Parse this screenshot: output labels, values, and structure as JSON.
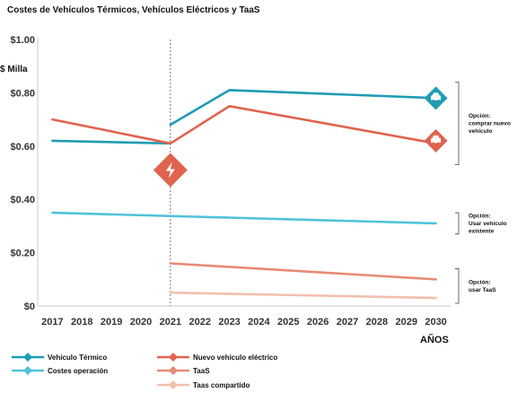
{
  "chart_data": {
    "type": "line",
    "title": "Costes de Vehículos Térmicos, Vehículos Eléctricos y TaaS",
    "ylabel": "$ Milla",
    "xlabel": "AÑOS",
    "x_ticks": [
      2017,
      2018,
      2019,
      2020,
      2021,
      2022,
      2023,
      2024,
      2025,
      2026,
      2027,
      2028,
      2029,
      2030
    ],
    "y_ticks": [
      "$0",
      "$0.20",
      "$0.40",
      "$0.60",
      "$0.80",
      "$1.00"
    ],
    "y_tick_values": [
      0,
      0.2,
      0.4,
      0.6,
      0.8,
      1.0
    ],
    "xlim": [
      2016.5,
      2030.5
    ],
    "ylim": [
      0,
      1.0
    ],
    "grid": false,
    "reference_line_x": 2021,
    "legend_position": "bottom",
    "series": [
      {
        "name": "Vehículo Térmico",
        "color": "#1e9cb3",
        "x": [
          2017,
          2021,
          null,
          2021,
          2023,
          2030
        ],
        "y": [
          0.62,
          0.61,
          null,
          0.68,
          0.81,
          0.78
        ]
      },
      {
        "name": "Costes operación",
        "color": "#4fc3d9",
        "x": [
          2017,
          2030
        ],
        "y": [
          0.35,
          0.31
        ]
      },
      {
        "name": "Nuevo vehículo eléctrico",
        "color": "#e0634e",
        "x": [
          2017,
          2021,
          2023,
          2030
        ],
        "y": [
          0.7,
          0.61,
          0.75,
          0.61
        ]
      },
      {
        "name": "TaaS",
        "color": "#e88a76",
        "x": [
          2021,
          2030
        ],
        "y": [
          0.16,
          0.1
        ]
      },
      {
        "name": "Taas compartido",
        "color": "#f2bfae",
        "x": [
          2021,
          2030
        ],
        "y": [
          0.05,
          0.03
        ]
      }
    ],
    "annotations": [
      {
        "text": [
          "Opción:",
          "comprar nuevo",
          "vehículo"
        ],
        "y_range": [
          0.53,
          0.84
        ]
      },
      {
        "text": [
          "Opción:",
          "Usar vehículo",
          "existente"
        ],
        "y_range": [
          0.27,
          0.35
        ]
      },
      {
        "text": [
          "Opción:",
          "usar TaaS"
        ],
        "y_range": [
          0.01,
          0.14
        ]
      }
    ],
    "markers": [
      {
        "icon": "lightning-bolt-icon",
        "x": 2021,
        "y": 0.51,
        "color": "#e0634e"
      },
      {
        "icon": "car-icon",
        "x": 2030,
        "y": 0.78,
        "color": "#1e9cb3"
      },
      {
        "icon": "car-icon",
        "x": 2030,
        "y": 0.62,
        "color": "#e0634e"
      }
    ]
  }
}
